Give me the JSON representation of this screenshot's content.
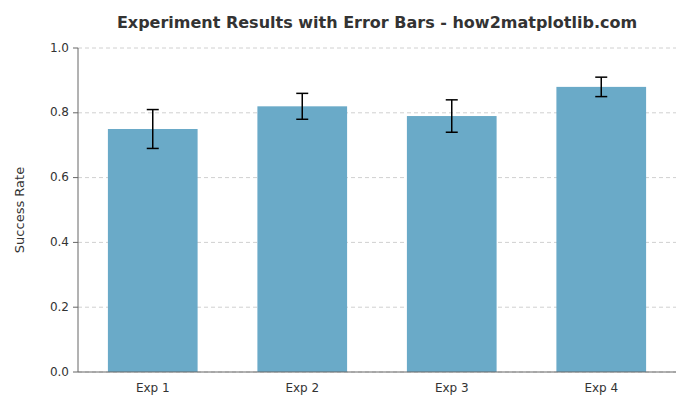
{
  "chart_data": {
    "type": "bar",
    "title": "Experiment Results with Error Bars - how2matplotlib.com",
    "categories": [
      "Exp 1",
      "Exp 2",
      "Exp 3",
      "Exp 4"
    ],
    "values": [
      0.75,
      0.82,
      0.79,
      0.88
    ],
    "errors": [
      0.06,
      0.04,
      0.05,
      0.03
    ],
    "color": "#6aaac8",
    "ylabel": "Success Rate",
    "ylim": [
      0.0,
      1.0
    ],
    "yticks": [
      {
        "value": 0.0,
        "label": "0.0"
      },
      0.2,
      0.4,
      0.6,
      0.8,
      {
        "value": 1.0,
        "label": "1.0"
      }
    ],
    "grid": true
  }
}
